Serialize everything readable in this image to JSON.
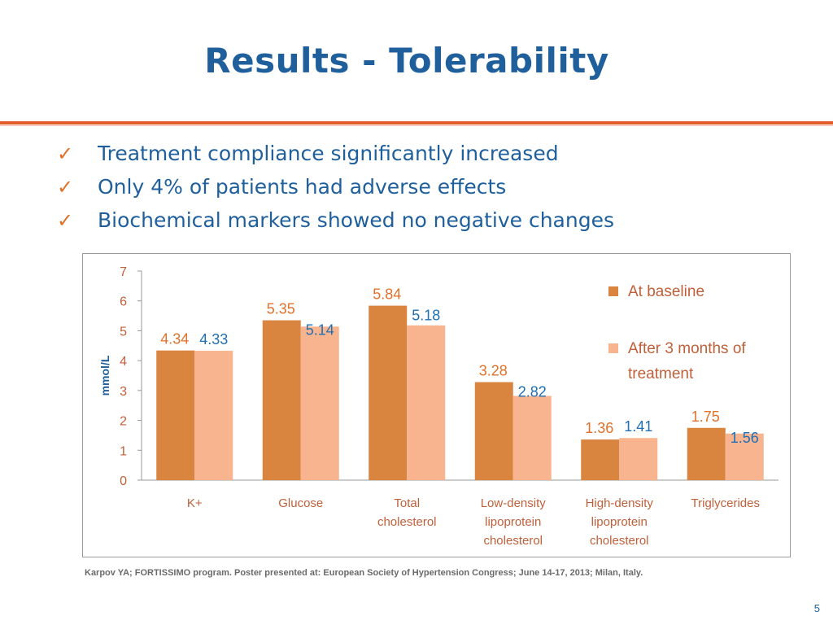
{
  "slide": {
    "title": "Results - Tolerability",
    "bullets": [
      "Treatment compliance significantly increased",
      "Only 4% of patients had adverse effects",
      "Biochemical markers showed no negative changes"
    ],
    "footnote": "Karpov YA; FORTISSIMO program. Poster presented at:  European Society of Hypertension Congress; June 14-17, 2013; Milan, Italy.",
    "page_number": "5",
    "colors": {
      "title": "#1f5f9c",
      "rule": "#e35a2b",
      "check": "#e0712b",
      "baseline_bar": "#d9843f",
      "after_bar": "#f8b48f",
      "baseline_label": "#e0712b",
      "after_label": "#1f6fb5",
      "axis_text": "#c0603a",
      "ylabel": "#1f5f9c",
      "category_text": "#c0603a"
    }
  },
  "chart_data": {
    "type": "bar",
    "categories": [
      [
        "K+"
      ],
      [
        "Glucose"
      ],
      [
        "Total",
        "cholesterol"
      ],
      [
        "Low-density",
        "lipoprotein",
        "cholesterol"
      ],
      [
        "High-density",
        "lipoprotein",
        "cholesterol"
      ],
      [
        "Triglycerides"
      ]
    ],
    "series": [
      {
        "name": "At baseline",
        "values": [
          4.34,
          5.35,
          5.84,
          3.28,
          1.36,
          1.75
        ]
      },
      {
        "name": "After 3 months of treatment",
        "legend_lines": [
          "After 3 months of",
          "treatment"
        ],
        "values": [
          4.33,
          5.14,
          5.18,
          2.82,
          1.41,
          1.56
        ]
      }
    ],
    "value_labels": [
      [
        "4.34",
        "5.35",
        "5.84",
        "3.28",
        "1.36",
        "1.75"
      ],
      [
        "4.33",
        "5.14",
        "5.18",
        "2.82",
        "1.41",
        "1.56"
      ]
    ],
    "ylabel": "mmol/L",
    "ylim": [
      0,
      7
    ],
    "yticks": [
      "0",
      "1",
      "2",
      "3",
      "4",
      "5",
      "6",
      "7"
    ],
    "grid": false,
    "legend_position": "top-right"
  }
}
